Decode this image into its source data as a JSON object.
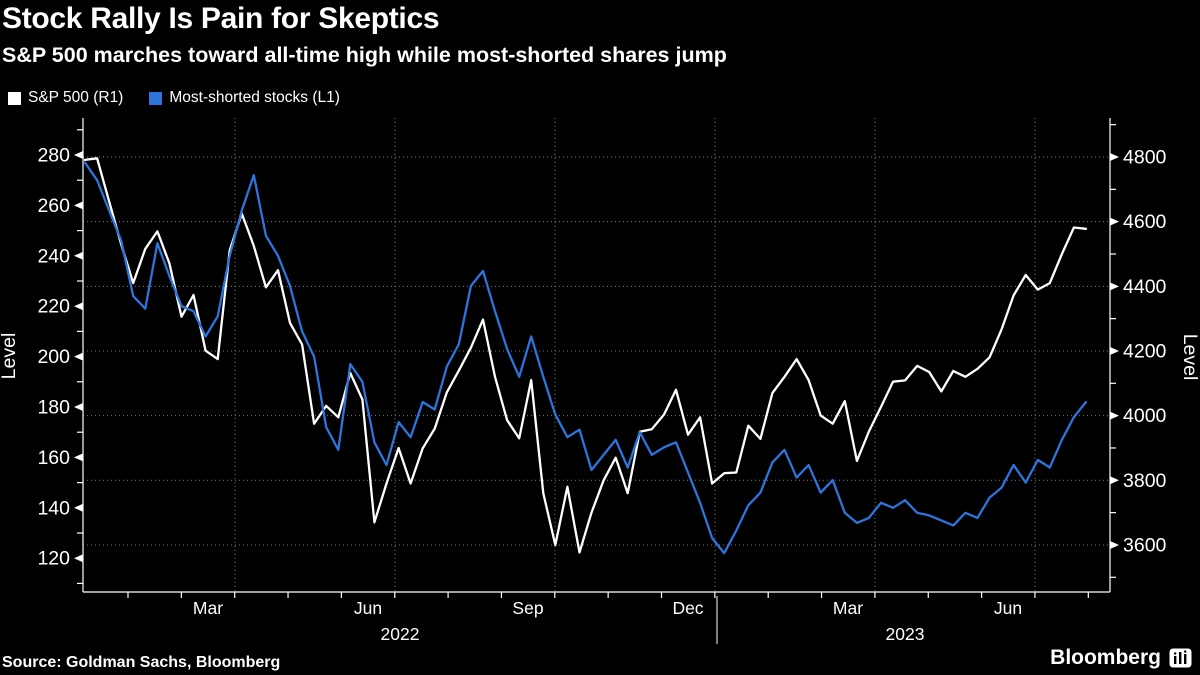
{
  "header": {
    "title": "Stock Rally Is Pain for Skeptics",
    "subtitle": "S&P 500 marches toward all-time high while most-shorted shares jump"
  },
  "legend": {
    "items": [
      {
        "label": "S&P 500 (R1)",
        "color": "#ffffff"
      },
      {
        "label": "Most-shorted stocks (L1)",
        "color": "#2d74dd"
      }
    ]
  },
  "chart_data": {
    "type": "line",
    "background": "#000000",
    "grid": "dotted",
    "grid_color": "#7c7c7c",
    "axis_color": "#ffffff",
    "left_axis": {
      "label": "Level",
      "ticks": [
        280,
        260,
        240,
        220,
        200,
        180,
        160,
        140,
        120
      ],
      "range": [
        107,
        292
      ]
    },
    "right_axis": {
      "label": "Level",
      "ticks": [
        4800,
        4600,
        4400,
        4200,
        4000,
        3800,
        3600
      ],
      "range": [
        3455,
        4920
      ]
    },
    "x_axis": {
      "month_labels": [
        "Mar",
        "Jun",
        "Sep",
        "Dec",
        "Mar",
        "Jun"
      ],
      "year_labels": [
        "2022",
        "2023"
      ],
      "minor_ticks": "monthly",
      "vertical_grid": "quarterly"
    },
    "series": [
      {
        "name": "S&P 500 (R1)",
        "axis": "right",
        "color": "#ffffff",
        "values": [
          4791,
          4796,
          4663,
          4530,
          4410,
          4516,
          4570,
          4471,
          4306,
          4373,
          4201,
          4175,
          4511,
          4625,
          4525,
          4397,
          4450,
          4287,
          4220,
          3975,
          4030,
          3995,
          4132,
          4050,
          3670,
          3790,
          3900,
          3790,
          3899,
          3960,
          4072,
          4140,
          4210,
          4297,
          4120,
          3986,
          3930,
          4110,
          3760,
          3600,
          3780,
          3577,
          3700,
          3800,
          3870,
          3760,
          3950,
          3958,
          4003,
          4080,
          3941,
          3995,
          3790,
          3822,
          3824,
          3969,
          3928,
          4070,
          4120,
          4175,
          4110,
          4000,
          3975,
          4045,
          3860,
          3951,
          4027,
          4105,
          4109,
          4154,
          4135,
          4075,
          4138,
          4120,
          4145,
          4180,
          4267,
          4372,
          4435,
          4390,
          4410,
          4500,
          4582,
          4578
        ]
      },
      {
        "name": "Most-shorted stocks (L1)",
        "axis": "left",
        "color": "#2d74dd",
        "values": [
          277,
          270,
          258,
          246,
          224,
          219,
          245,
          232,
          220,
          218,
          208,
          216,
          240,
          258,
          272,
          248,
          240,
          228,
          210,
          200,
          172,
          163,
          197,
          190,
          166,
          157,
          174,
          168,
          182,
          179,
          196,
          205,
          228,
          234,
          218,
          203,
          192,
          208,
          192,
          177,
          168,
          171,
          155,
          161,
          167,
          156,
          170,
          161,
          164,
          166,
          154,
          142,
          128,
          122,
          131,
          141,
          146,
          158,
          163,
          152,
          157,
          146,
          151,
          138,
          134,
          136,
          142,
          140,
          143,
          138,
          137,
          135,
          133,
          138,
          136,
          144,
          148,
          157,
          150,
          159,
          156,
          167,
          176,
          182
        ]
      }
    ]
  },
  "footer": {
    "source": "Source: Goldman Sachs, Bloomberg",
    "brand": "Bloomberg"
  }
}
